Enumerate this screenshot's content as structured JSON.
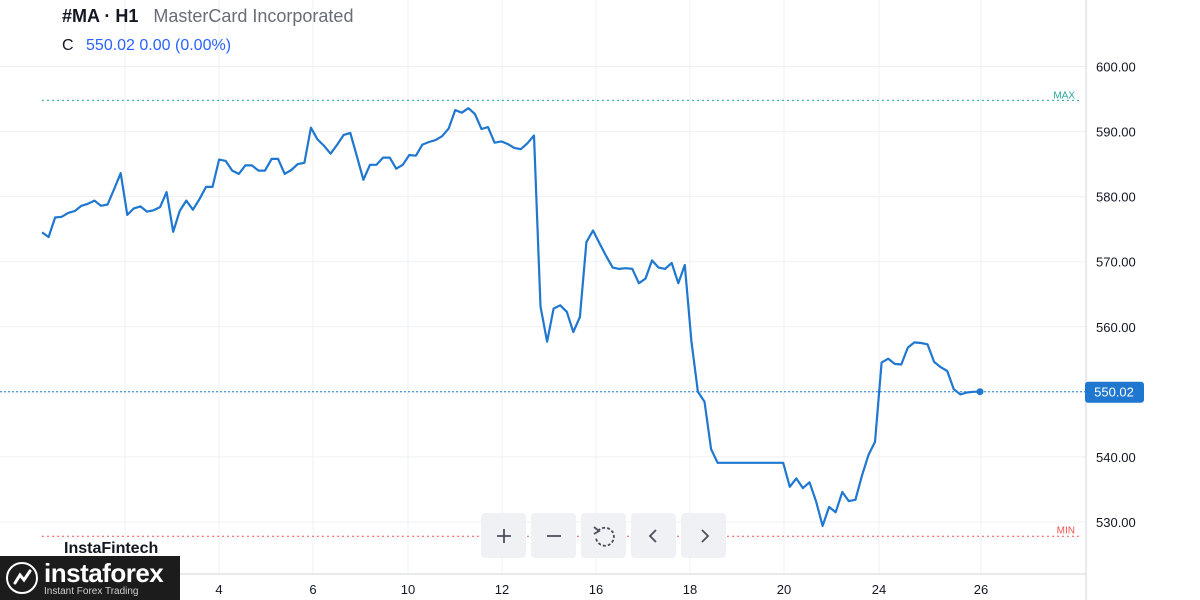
{
  "header": {
    "symbol": "#MA · H1",
    "company": "MasterCard Incorporated",
    "ohlc_label": "C",
    "close_value": "550.02",
    "change": "0.00 (0.00%)"
  },
  "toolbar": {
    "buttons": [
      {
        "name": "zoom-in-button",
        "icon": "plus-icon",
        "glyph": "+"
      },
      {
        "name": "zoom-out-button",
        "icon": "minus-icon",
        "glyph": "−"
      },
      {
        "name": "reset-button",
        "icon": "reset-icon",
        "glyph": "↺"
      },
      {
        "name": "scroll-left-button",
        "icon": "chevron-left-icon",
        "glyph": "‹"
      },
      {
        "name": "scroll-right-button",
        "icon": "chevron-right-icon",
        "glyph": "›"
      }
    ]
  },
  "watermark": "InstaFintech",
  "brand": {
    "name": "instaforex",
    "tagline": "Instant Forex Trading"
  },
  "colors": {
    "line": "#1f77d0",
    "max_line": "#26a69a",
    "min_line": "#ef5350",
    "price_tag": "#1f77d0",
    "grid": "#eef0f3"
  },
  "chart_data": {
    "type": "line",
    "y_range": [
      522,
      609
    ],
    "y_ticks": [
      "600.00",
      "590.00",
      "580.00",
      "570.00",
      "560.00",
      "550.00",
      "540.00",
      "530.00"
    ],
    "x_ticks": [
      "4",
      "6",
      "10",
      "12",
      "16",
      "18",
      "20",
      "24",
      "26"
    ],
    "max_label": "MAX",
    "max_value": 594.8,
    "min_label": "MIN",
    "min_value": 527.8,
    "last_price_label": "550.02",
    "last_price": 550.02,
    "grid": true,
    "series": [
      {
        "values": [
          574.5,
          573.8,
          576.8,
          576.9,
          577.5,
          577.8,
          578.6,
          578.9,
          579.4,
          578.6,
          578.8,
          581.2,
          583.6,
          577.2,
          578.2,
          578.5,
          577.7,
          577.9,
          578.4,
          580.7,
          574.6,
          577.8,
          579.4,
          578.0,
          579.6,
          581.5,
          581.5,
          585.7,
          585.5,
          584.0,
          583.5,
          584.8,
          584.8,
          584.0,
          584.0,
          585.8,
          585.8,
          583.5,
          584.1,
          585.0,
          585.2,
          590.6,
          588.8,
          587.8,
          586.6,
          588.0,
          589.5,
          589.8,
          586.2,
          582.6,
          584.9,
          584.9,
          586.0,
          586.0,
          584.3,
          584.9,
          586.4,
          586.3,
          588.0,
          588.4,
          588.7,
          589.3,
          590.5,
          593.3,
          592.9,
          593.6,
          592.7,
          590.4,
          590.7,
          588.3,
          588.5,
          588.1,
          587.5,
          587.3,
          588.2,
          589.4,
          563.1,
          557.7,
          562.8,
          563.3,
          562.3,
          559.2,
          561.5,
          573.0,
          574.8,
          572.8,
          570.9,
          569.1,
          568.9,
          569.0,
          568.9,
          566.7,
          567.4,
          570.2,
          569.1,
          568.9,
          569.8,
          566.7,
          569.5,
          557.8,
          550.0,
          548.5,
          541.2,
          539.1,
          539.1,
          539.1,
          539.1,
          539.1,
          539.1,
          539.1,
          539.1,
          539.1,
          539.1,
          539.1,
          535.4,
          536.7,
          535.2,
          536.1,
          533.2,
          529.4,
          532.3,
          531.5,
          534.6,
          533.2,
          533.4,
          537.1,
          540.3,
          542.3,
          554.5,
          555.1,
          554.3,
          554.2,
          556.8,
          557.6,
          557.5,
          557.3,
          554.6,
          553.8,
          553.2,
          550.4,
          549.6,
          549.9,
          550.0,
          550.02
        ]
      }
    ]
  }
}
